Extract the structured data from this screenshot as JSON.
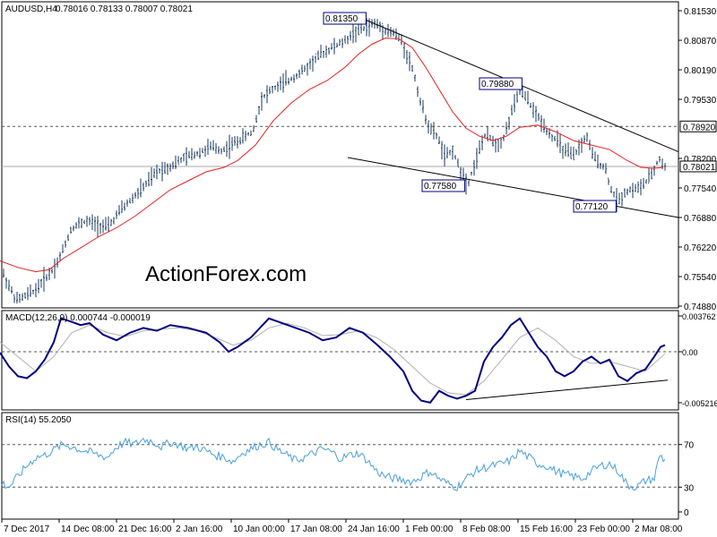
{
  "chart_data": [
    {
      "type": "candlestick",
      "title": "AUDUSD,H4",
      "ohlc_label": "0.78016 0.78133 0.78007 0.78021",
      "watermark": "ActionForex.com",
      "yticks": [
        "0.81530",
        "0.80870",
        "0.80190",
        "0.79530",
        "0.78200",
        "0.77540",
        "0.76880",
        "0.76220",
        "0.75540",
        "0.74880"
      ],
      "ylim": [
        0.7483,
        0.8162
      ],
      "price_labels": {
        "high_1": "0.81350",
        "high_2": "0.79880",
        "low_1": "0.77580",
        "low_2": "0.77120",
        "level": "0.78920",
        "current": "0.78021"
      },
      "level_line": 0.7892,
      "current_line": 0.78021,
      "series": [
        {
          "name": "price",
          "x": [
            0,
            18,
            30,
            40,
            50,
            57,
            65,
            80,
            95,
            110,
            120,
            135,
            150,
            162,
            175,
            190,
            205,
            220,
            235,
            248,
            258,
            270,
            282,
            292,
            300,
            312,
            322,
            340,
            355,
            370,
            385,
            395,
            405,
            418,
            430,
            440,
            448,
            455,
            462,
            470,
            480,
            488,
            497,
            505,
            513,
            522,
            530,
            540,
            548,
            555,
            563,
            570,
            580,
            588,
            596,
            605,
            615,
            622,
            630,
            640,
            648,
            655,
            660,
            668,
            675,
            682,
            690,
            695,
            700,
            708,
            715,
            722,
            728,
            733,
            736,
            740
          ],
          "y": [
            0.7575,
            0.75,
            0.7512,
            0.7525,
            0.755,
            0.7565,
            0.759,
            0.7665,
            0.768,
            0.7672,
            0.7665,
            0.7705,
            0.7735,
            0.776,
            0.779,
            0.7803,
            0.782,
            0.7832,
            0.7845,
            0.7838,
            0.785,
            0.7865,
            0.788,
            0.7955,
            0.797,
            0.7985,
            0.7995,
            0.802,
            0.805,
            0.807,
            0.8085,
            0.8105,
            0.8112,
            0.8125,
            0.811,
            0.8102,
            0.8085,
            0.805,
            0.801,
            0.794,
            0.7885,
            0.787,
            0.782,
            0.784,
            0.7795,
            0.7762,
            0.781,
            0.787,
            0.7865,
            0.785,
            0.787,
            0.792,
            0.797,
            0.7955,
            0.7925,
            0.79,
            0.787,
            0.786,
            0.7835,
            0.7825,
            0.785,
            0.787,
            0.783,
            0.781,
            0.78,
            0.775,
            0.7722,
            0.774,
            0.7748,
            0.7752,
            0.7756,
            0.777,
            0.7785,
            0.781,
            0.7818,
            0.7802
          ]
        },
        {
          "name": "ma",
          "x": [
            0,
            20,
            40,
            55,
            70,
            90,
            110,
            130,
            150,
            170,
            190,
            210,
            230,
            250,
            265,
            285,
            305,
            325,
            345,
            365,
            385,
            400,
            415,
            430,
            445,
            460,
            475,
            490,
            505,
            520,
            535,
            550,
            565,
            580,
            600,
            620,
            640,
            660,
            680,
            700,
            715,
            730,
            740
          ],
          "y": [
            0.759,
            0.7575,
            0.7565,
            0.757,
            0.7595,
            0.762,
            0.7645,
            0.7665,
            0.769,
            0.772,
            0.775,
            0.777,
            0.779,
            0.78,
            0.7815,
            0.785,
            0.7905,
            0.7945,
            0.7975,
            0.7995,
            0.8025,
            0.8055,
            0.8078,
            0.8092,
            0.809,
            0.807,
            0.8025,
            0.7975,
            0.7925,
            0.7888,
            0.787,
            0.786,
            0.787,
            0.789,
            0.7895,
            0.788,
            0.786,
            0.785,
            0.784,
            0.7815,
            0.78,
            0.7798,
            0.78
          ]
        }
      ]
    },
    {
      "type": "line",
      "title": "MACD(12,26,9) 0.000744 -0.000019",
      "yticks": [
        "0.003762",
        "0.00",
        "-0.005216"
      ],
      "ylim": [
        -0.00555,
        0.0042
      ],
      "series": [
        {
          "name": "macd",
          "x": [
            0,
            10,
            20,
            30,
            40,
            50,
            60,
            68,
            78,
            90,
            100,
            115,
            130,
            145,
            160,
            175,
            190,
            210,
            230,
            245,
            255,
            265,
            280,
            300,
            315,
            330,
            345,
            360,
            375,
            390,
            405,
            420,
            435,
            450,
            460,
            470,
            480,
            490,
            500,
            510,
            520,
            530,
            540,
            550,
            560,
            570,
            580,
            590,
            600,
            610,
            620,
            630,
            640,
            650,
            660,
            670,
            680,
            690,
            700,
            710,
            720,
            730,
            737,
            742
          ],
          "y": [
            -0.0001,
            -0.0015,
            -0.0025,
            -0.0027,
            -0.002,
            -0.0008,
            0.001,
            0.0035,
            0.0032,
            0.0028,
            0.003,
            0.0018,
            0.0012,
            0.002,
            0.0025,
            0.0022,
            0.0028,
            0.0025,
            0.002,
            0.001,
            0.0,
            0.0005,
            0.0015,
            0.0035,
            0.003,
            0.0025,
            0.002,
            0.0012,
            0.0015,
            0.0025,
            0.002,
            0.0008,
            -0.0005,
            -0.002,
            -0.004,
            -0.005,
            -0.0052,
            -0.004,
            -0.0045,
            -0.0048,
            -0.0045,
            -0.004,
            -0.001,
            0.0005,
            0.0015,
            0.0028,
            0.0035,
            0.002,
            0.0005,
            -0.0005,
            -0.002,
            -0.0025,
            -0.002,
            -0.001,
            -0.0005,
            -0.0012,
            -0.0008,
            -0.0025,
            -0.003,
            -0.0022,
            -0.0018,
            -0.0005,
            0.0005,
            0.0007
          ]
        },
        {
          "name": "signal",
          "x": [
            0,
            20,
            40,
            60,
            80,
            100,
            120,
            140,
            160,
            180,
            200,
            220,
            240,
            260,
            280,
            300,
            320,
            340,
            360,
            380,
            400,
            420,
            440,
            460,
            480,
            500,
            520,
            540,
            560,
            580,
            600,
            620,
            640,
            660,
            680,
            700,
            720,
            742
          ],
          "y": [
            0.001,
            -0.0005,
            -0.002,
            -0.0005,
            0.002,
            0.0028,
            0.002,
            0.0016,
            0.0022,
            0.0024,
            0.0025,
            0.0022,
            0.0015,
            0.0007,
            0.0012,
            0.0025,
            0.003,
            0.0025,
            0.0017,
            0.0018,
            0.0022,
            0.0015,
            0.0002,
            -0.0015,
            -0.0032,
            -0.0042,
            -0.0044,
            -0.003,
            -0.0008,
            0.0015,
            0.0025,
            0.0012,
            -0.0005,
            -0.0012,
            -0.001,
            -0.0015,
            -0.002,
            -0.0002
          ]
        }
      ]
    },
    {
      "type": "line",
      "title": "RSI(14) 55.2050",
      "yticks": [
        "70",
        "30",
        "0"
      ],
      "ylim": [
        0,
        100
      ],
      "series": [
        {
          "name": "rsi",
          "x": [
            0,
            10,
            20,
            30,
            40,
            50,
            60,
            70,
            80,
            90,
            100,
            110,
            120,
            130,
            140,
            150,
            160,
            170,
            180,
            190,
            200,
            210,
            220,
            230,
            240,
            250,
            260,
            270,
            280,
            290,
            300,
            310,
            320,
            330,
            340,
            350,
            360,
            370,
            380,
            390,
            400,
            410,
            420,
            430,
            440,
            450,
            460,
            470,
            480,
            490,
            500,
            510,
            520,
            530,
            540,
            550,
            560,
            570,
            580,
            590,
            600,
            610,
            620,
            630,
            640,
            650,
            660,
            670,
            680,
            690,
            700,
            710,
            720,
            730,
            736,
            742
          ],
          "y": [
            35,
            30,
            40,
            50,
            58,
            60,
            65,
            70,
            68,
            65,
            63,
            60,
            58,
            68,
            72,
            70,
            75,
            73,
            68,
            72,
            70,
            66,
            68,
            64,
            60,
            58,
            54,
            62,
            66,
            70,
            72,
            65,
            60,
            55,
            58,
            62,
            66,
            63,
            57,
            60,
            62,
            55,
            45,
            40,
            38,
            37,
            35,
            40,
            45,
            38,
            33,
            30,
            38,
            45,
            48,
            50,
            52,
            55,
            64,
            58,
            52,
            50,
            45,
            42,
            40,
            38,
            45,
            50,
            52,
            45,
            32,
            30,
            36,
            38,
            60,
            55
          ]
        }
      ],
      "levels": [
        70,
        30
      ]
    }
  ],
  "x_axis": {
    "labels": [
      "7 Dec 2017",
      "14 Dec 08:00",
      "21 Dec 16:00",
      "2 Jan 16:00",
      "10 Jan 00:00",
      "17 Jan 08:00",
      "24 Jan 16:00",
      "1 Feb 00:00",
      "8 Feb 08:00",
      "15 Feb 16:00",
      "23 Feb 00:00",
      "2 Mar 08:00"
    ]
  },
  "trendlines": [
    {
      "name": "upper",
      "points": [
        [
          405,
          0.8135
        ],
        [
          757,
          0.7835
        ]
      ]
    },
    {
      "name": "lower",
      "points": [
        [
          388,
          0.7822
        ],
        [
          757,
          0.7688
        ]
      ]
    }
  ],
  "macd_trendline": {
    "points": [
      [
        520,
        -0.0049
      ],
      [
        745,
        -0.0029
      ]
    ]
  },
  "colors": {
    "price": "#1a3a5c",
    "ma": "#e52020",
    "macd": "#000080",
    "signal": "#b0b0b0",
    "rsi": "#4aa0d8",
    "label_box": "#000080",
    "watermark": "#c8c8c8"
  }
}
